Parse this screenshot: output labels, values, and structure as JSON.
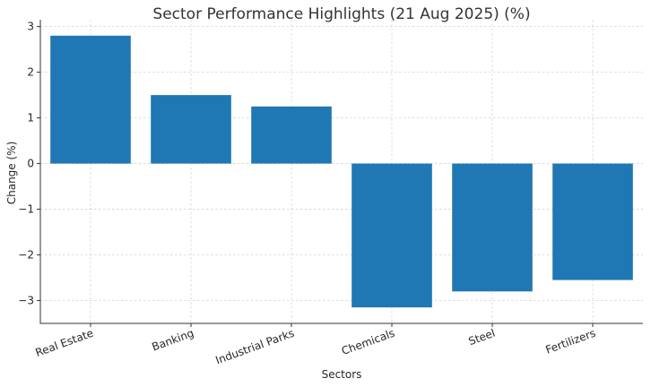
{
  "chart_data": {
    "type": "bar",
    "title": "Sector Performance Highlights (21 Aug 2025) (%)",
    "xlabel": "Sectors",
    "ylabel": "Change (%)",
    "categories": [
      "Real Estate",
      "Banking",
      "Industrial Parks",
      "Chemicals",
      "Steel",
      "Fertilizers"
    ],
    "values": [
      2.8,
      1.5,
      1.25,
      -3.15,
      -2.8,
      -2.55
    ],
    "ylim": [
      -3.5,
      3.15
    ],
    "yticks": [
      3,
      2,
      1,
      0,
      -1,
      -2,
      -3
    ],
    "ytick_labels": [
      "3",
      "2",
      "1",
      "0",
      "−1",
      "−2",
      "−3"
    ],
    "grid": true,
    "colors": {
      "bar": "#1f77b4"
    }
  }
}
